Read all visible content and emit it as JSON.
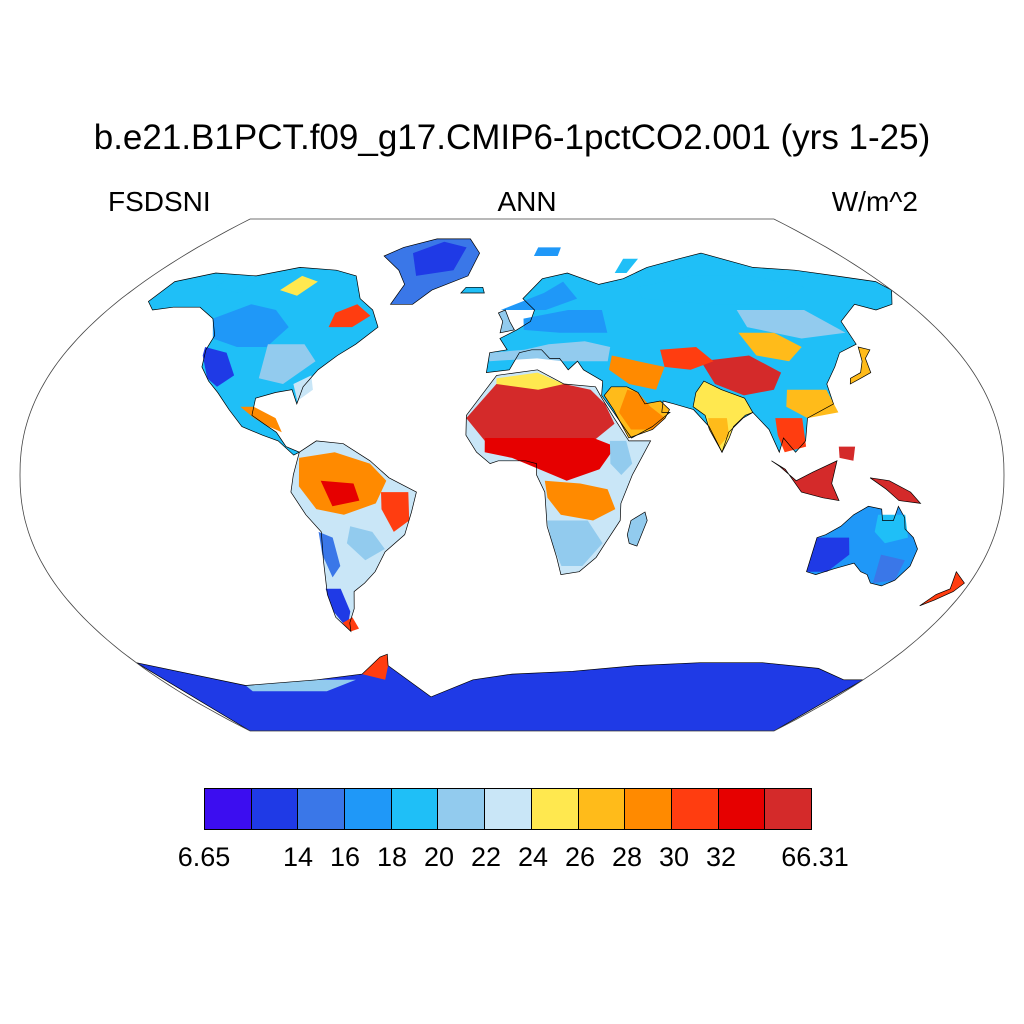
{
  "title": "b.e21.B1PCT.f09_g17.CMIP6-1pctCO2.001 (yrs 1-25)",
  "left_label": "FSDSNI",
  "center_label": "ANN",
  "right_label": "W/m^2",
  "colorbar": {
    "colors": [
      "#3c0df0",
      "#1f3ae6",
      "#3a77e8",
      "#1f98f8",
      "#1fbff7",
      "#92cbee",
      "#c9e6f7",
      "#ffe84f",
      "#ffbb1a",
      "#ff8a00",
      "#ff3d10",
      "#e60000",
      "#d42a2a"
    ],
    "tick_labels": [
      "6.65",
      "14",
      "16",
      "18",
      "20",
      "22",
      "24",
      "26",
      "28",
      "30",
      "32",
      "66.31"
    ]
  },
  "chart_data": {
    "type": "heatmap",
    "title": "b.e21.B1PCT.f09_g17.CMIP6-1pctCO2.001 (yrs 1-25)",
    "variable": "FSDSNI",
    "season": "ANN",
    "units": "W/m^2",
    "projection": "Robinson",
    "range": [
      6.65,
      66.31
    ],
    "levels": [
      14,
      16,
      18,
      20,
      22,
      24,
      26,
      28,
      30,
      32
    ],
    "regions": [
      {
        "region": "Sahara / northern Africa",
        "value": 34
      },
      {
        "region": "Arabian Peninsula",
        "value": 31
      },
      {
        "region": "Tibetan Plateau",
        "value": 35
      },
      {
        "region": "Maritime Continent",
        "value": 34
      },
      {
        "region": "Amazon",
        "value": 31
      },
      {
        "region": "Central Africa",
        "value": 30
      },
      {
        "region": "India",
        "value": 27
      },
      {
        "region": "Europe",
        "value": 21
      },
      {
        "region": "Siberia",
        "value": 20
      },
      {
        "region": "North America",
        "value": 19
      },
      {
        "region": "Australia",
        "value": 17
      },
      {
        "region": "Greenland",
        "value": 15
      },
      {
        "region": "Antarctica",
        "value": 10
      },
      {
        "region": "Southern Andes",
        "value": 13
      }
    ]
  }
}
